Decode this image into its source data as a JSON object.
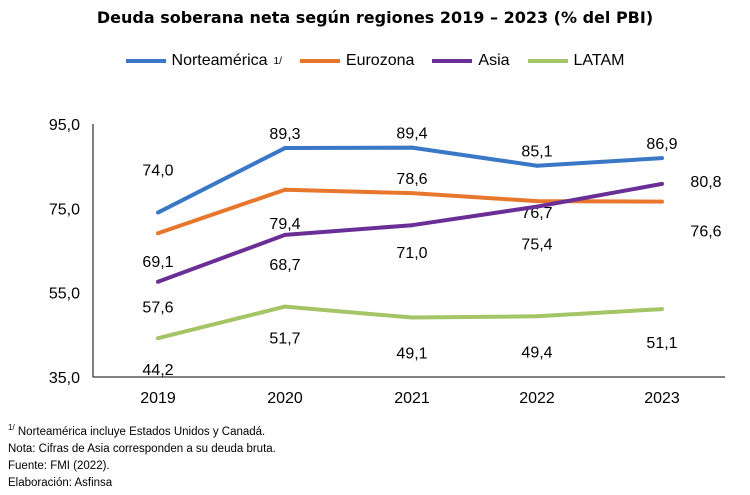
{
  "chart_data": {
    "type": "line",
    "title": "Deuda soberana neta según regiones 2019 – 2023 (% del PBI)",
    "categories": [
      "2019",
      "2020",
      "2021",
      "2022",
      "2023"
    ],
    "ylim": [
      35,
      95
    ],
    "yticks": [
      "35,0",
      "55,0",
      "75,0",
      "95,0"
    ],
    "ytick_values": [
      35,
      55,
      75,
      95
    ],
    "grid": false,
    "legend_position": "top",
    "series": [
      {
        "name": "Norteamérica",
        "sup": "1/",
        "color": "#3A77C6",
        "values": [
          74.0,
          89.3,
          89.4,
          85.1,
          86.9
        ],
        "labels": [
          "74,0",
          "89,3",
          "89,4",
          "85,1",
          "86,9"
        ]
      },
      {
        "name": "Eurozona",
        "color": "#E8772E",
        "values": [
          69.1,
          79.4,
          78.6,
          76.7,
          76.6
        ],
        "labels": [
          "69,1",
          "79,4",
          "78,6",
          "76,7",
          "76,6"
        ]
      },
      {
        "name": "Asia",
        "color": "#6A2F96",
        "values": [
          57.6,
          68.7,
          71.0,
          75.4,
          80.8
        ],
        "labels": [
          "57,6",
          "68,7",
          "71,0",
          "75,4",
          "80,8"
        ]
      },
      {
        "name": "LATAM",
        "color": "#A3C565",
        "values": [
          44.2,
          51.7,
          49.1,
          49.4,
          51.1
        ],
        "labels": [
          "44,2",
          "51,7",
          "49,1",
          "49,4",
          "51,1"
        ]
      }
    ]
  },
  "notes": {
    "n1_sup": "1/",
    "n1": " Norteamérica incluye Estados Unidos y Canadá.",
    "n2": "Nota: Cifras de Asia corresponden a su deuda bruta.",
    "n3": "Fuente: FMI (2022).",
    "n4": "Elaboración: Asfinsa"
  }
}
